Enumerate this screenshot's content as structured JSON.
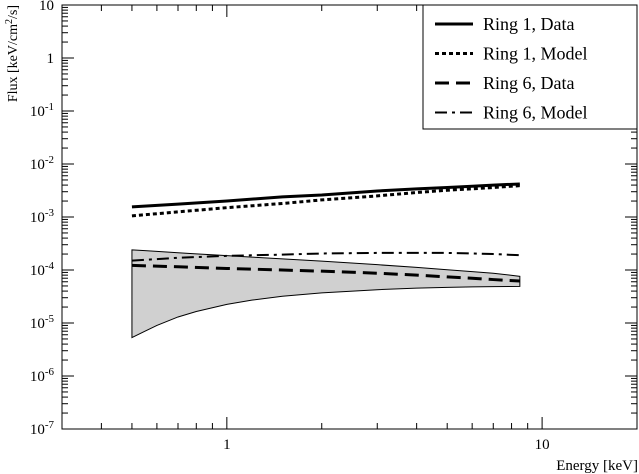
{
  "chart_data": {
    "type": "line",
    "x_scale": "log",
    "y_scale": "log",
    "xlim": [
      0.3,
      20
    ],
    "ylim": [
      1e-07,
      10
    ],
    "xlabel": "Energy [keV]",
    "ylabel": {
      "main": "Flux [keV/cm",
      "sup": "2",
      "tail": "/s]"
    },
    "x_ticks": [
      {
        "value": 1,
        "label": "1"
      },
      {
        "value": 10,
        "label": "10"
      }
    ],
    "y_ticks": [
      {
        "value": 10,
        "base": "10",
        "exp": ""
      },
      {
        "value": 1,
        "base": "1",
        "exp": ""
      },
      {
        "value": 0.1,
        "base": "10",
        "exp": "-1"
      },
      {
        "value": 0.01,
        "base": "10",
        "exp": "-2"
      },
      {
        "value": 0.001,
        "base": "10",
        "exp": "-3"
      },
      {
        "value": 0.0001,
        "base": "10",
        "exp": "-4"
      },
      {
        "value": 1e-05,
        "base": "10",
        "exp": "-5"
      },
      {
        "value": 1e-06,
        "base": "10",
        "exp": "-6"
      },
      {
        "value": 1e-07,
        "base": "10",
        "exp": "-7"
      }
    ],
    "grid": false,
    "legend_position": "top-right",
    "series": [
      {
        "name": "Ring 1, Data",
        "style": "solid",
        "stroke_width": 3,
        "x": [
          0.5,
          0.7,
          1,
          1.5,
          2,
          3,
          4,
          5,
          6,
          7,
          8.5
        ],
        "y": [
          0.00155,
          0.00175,
          0.002,
          0.0024,
          0.0026,
          0.0031,
          0.0034,
          0.0036,
          0.0038,
          0.004,
          0.0042
        ]
      },
      {
        "name": "Ring 1, Model",
        "style": "dotted",
        "stroke_width": 3,
        "x": [
          0.5,
          0.7,
          1,
          1.5,
          2,
          3,
          4,
          5,
          6,
          7,
          8.5
        ],
        "y": [
          0.00105,
          0.00125,
          0.0015,
          0.0018,
          0.0021,
          0.0025,
          0.0029,
          0.0032,
          0.0034,
          0.0036,
          0.0039
        ]
      },
      {
        "name": "Ring 6, Data",
        "style": "dashed",
        "stroke_width": 3,
        "x": [
          0.5,
          0.7,
          1,
          1.5,
          2,
          3,
          4,
          5,
          6,
          7,
          8.5
        ],
        "y": [
          0.000122,
          0.000115,
          0.000107,
          0.0001,
          9.5e-05,
          8.7e-05,
          8e-05,
          7.4e-05,
          7e-05,
          6.6e-05,
          6.2e-05
        ]
      },
      {
        "name": "Ring 6, Model",
        "style": "dashdot",
        "stroke_width": 2,
        "x": [
          0.5,
          0.7,
          1,
          1.5,
          2,
          3,
          4,
          5,
          6,
          7,
          8.5
        ],
        "y": [
          0.00015,
          0.00017,
          0.000185,
          0.000195,
          0.000205,
          0.00021,
          0.00021,
          0.00021,
          0.000205,
          0.0002,
          0.00019
        ]
      }
    ],
    "error_band": {
      "series": "Ring 6, Data",
      "x": [
        0.5,
        0.55,
        0.6,
        0.7,
        0.8,
        1,
        1.2,
        1.5,
        2,
        3,
        4,
        5,
        6,
        7,
        8.5
      ],
      "upper": [
        0.00024,
        0.000232,
        0.000225,
        0.000212,
        0.000202,
        0.000187,
        0.000175,
        0.000162,
        0.000147,
        0.000126,
        0.000112,
        0.000101,
        9.3e-05,
        8.7e-05,
        7.6e-05
      ],
      "lower": [
        5.3e-06,
        7e-06,
        9e-06,
        1.3e-05,
        1.65e-05,
        2.25e-05,
        2.7e-05,
        3.2e-05,
        3.7e-05,
        4.25e-05,
        4.55e-05,
        4.7e-05,
        4.8e-05,
        4.85e-05,
        4.9e-05
      ],
      "fill": "#d0d0d0"
    }
  }
}
